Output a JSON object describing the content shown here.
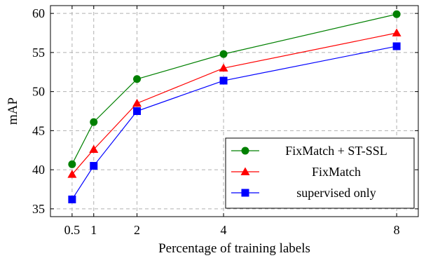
{
  "chart_data": {
    "type": "line",
    "title": "",
    "xlabel": "Percentage of training labels",
    "ylabel": "mAP",
    "x": [
      0.5,
      1,
      2,
      4,
      8
    ],
    "xticks": [
      "0.5",
      "1",
      "2",
      "4",
      "8"
    ],
    "xlim": [
      0,
      8.5
    ],
    "ylim": [
      34,
      61
    ],
    "yticks": [
      "35",
      "40",
      "45",
      "50",
      "55",
      "60"
    ],
    "grid": true,
    "legend_position": "bottom-right",
    "series": [
      {
        "name": "FixMatch + ST-SSL",
        "color": "#008000",
        "marker": "circle",
        "values": [
          40.7,
          46.1,
          51.6,
          54.8,
          59.9
        ]
      },
      {
        "name": "FixMatch",
        "color": "#ff0000",
        "marker": "triangle",
        "values": [
          39.4,
          42.6,
          48.5,
          53.0,
          57.5
        ]
      },
      {
        "name": "supervised only",
        "color": "#0000ff",
        "marker": "square",
        "values": [
          36.2,
          40.5,
          47.5,
          51.4,
          55.8
        ]
      }
    ]
  }
}
